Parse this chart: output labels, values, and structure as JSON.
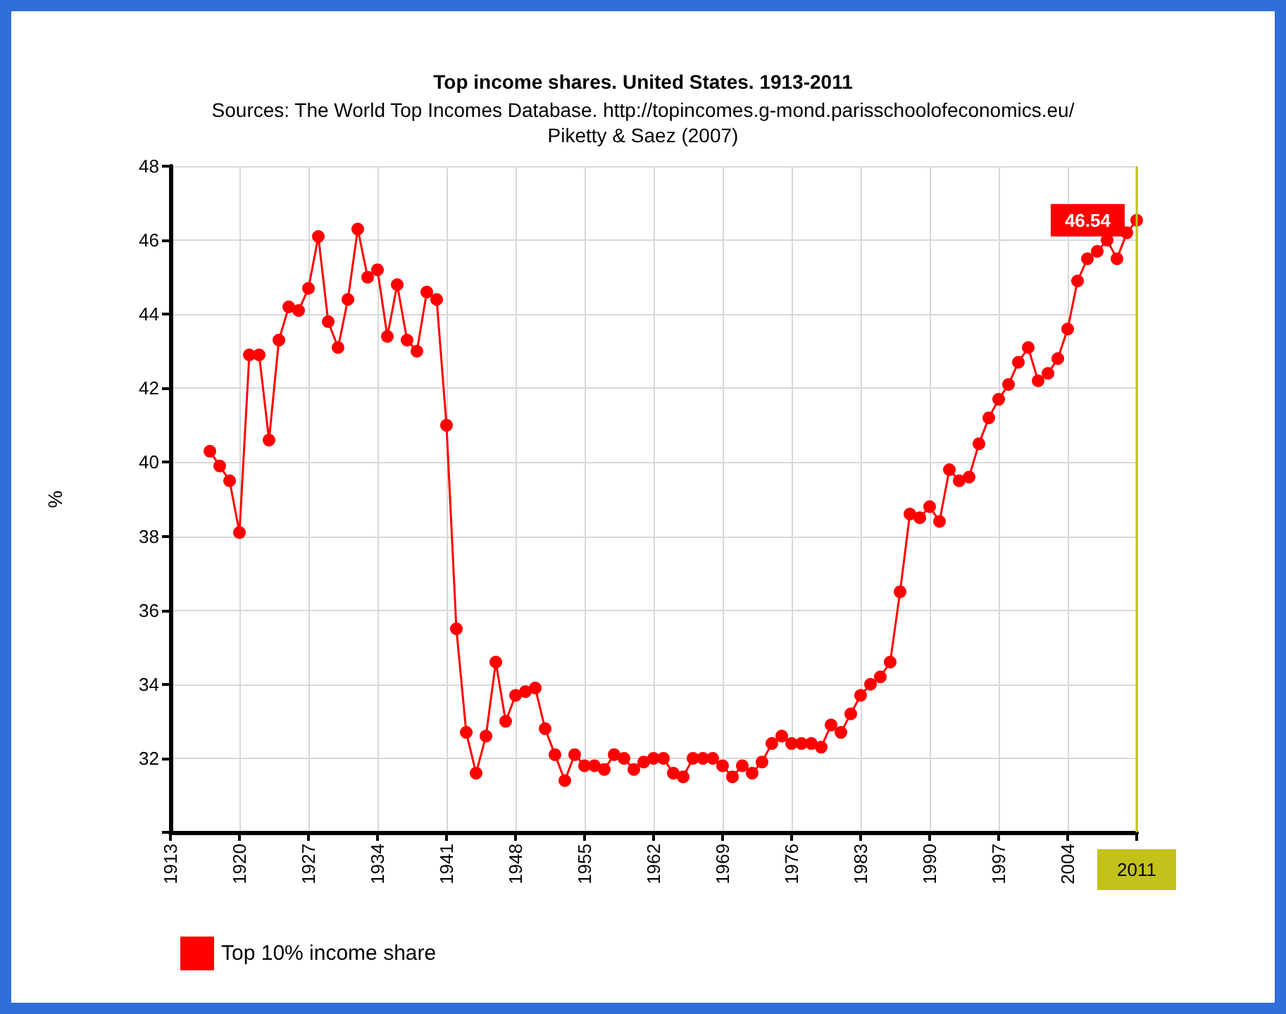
{
  "chart_data": {
    "type": "line",
    "title": "Top income shares. United States. 1913-2011",
    "subtitle": "Sources: The World Top Incomes Database. http://topincomes.g-mond.parisschoolofeconomics.eu/\nPiketty & Saez (2007)",
    "ylabel": "%",
    "x": [
      1917,
      1918,
      1919,
      1920,
      1921,
      1922,
      1923,
      1924,
      1925,
      1926,
      1927,
      1928,
      1929,
      1930,
      1931,
      1932,
      1933,
      1934,
      1935,
      1936,
      1937,
      1938,
      1939,
      1940,
      1941,
      1942,
      1943,
      1944,
      1945,
      1946,
      1947,
      1948,
      1949,
      1950,
      1951,
      1952,
      1953,
      1954,
      1955,
      1956,
      1957,
      1958,
      1959,
      1960,
      1961,
      1962,
      1963,
      1964,
      1965,
      1966,
      1967,
      1968,
      1969,
      1970,
      1971,
      1972,
      1973,
      1974,
      1975,
      1976,
      1977,
      1978,
      1979,
      1980,
      1981,
      1982,
      1983,
      1984,
      1985,
      1986,
      1987,
      1988,
      1989,
      1990,
      1991,
      1992,
      1993,
      1994,
      1995,
      1996,
      1997,
      1998,
      1999,
      2000,
      2001,
      2002,
      2003,
      2004,
      2005,
      2006,
      2007,
      2008,
      2009,
      2010,
      2011
    ],
    "series": [
      {
        "name": "Top 10% income share",
        "color": "#ff0000",
        "values": [
          40.3,
          39.9,
          39.5,
          38.1,
          42.9,
          42.9,
          40.6,
          43.3,
          44.2,
          44.1,
          44.7,
          46.1,
          43.8,
          43.1,
          44.4,
          46.3,
          45.0,
          45.2,
          43.4,
          44.8,
          43.3,
          43.0,
          44.6,
          44.4,
          41.0,
          35.5,
          32.7,
          31.6,
          32.6,
          34.6,
          33.0,
          33.7,
          33.8,
          33.9,
          32.8,
          32.1,
          31.4,
          32.1,
          31.8,
          31.8,
          31.7,
          32.1,
          32.0,
          31.7,
          31.9,
          32.0,
          32.0,
          31.6,
          31.5,
          32.0,
          32.0,
          32.0,
          31.8,
          31.5,
          31.8,
          31.6,
          31.9,
          32.4,
          32.6,
          32.4,
          32.4,
          32.4,
          32.3,
          32.9,
          32.7,
          33.2,
          33.7,
          34.0,
          34.2,
          34.6,
          36.5,
          38.6,
          38.5,
          38.8,
          38.4,
          39.8,
          39.5,
          39.6,
          40.5,
          41.2,
          41.7,
          42.1,
          42.7,
          43.1,
          42.2,
          42.4,
          42.8,
          43.6,
          44.9,
          45.5,
          45.7,
          46.0,
          45.5,
          46.2,
          46.54
        ],
        "value_labels": [
          null,
          null,
          null,
          null,
          null,
          null,
          null,
          null,
          null,
          null,
          null,
          null,
          null,
          null,
          null,
          null,
          null,
          null,
          null,
          null,
          null,
          null,
          null,
          null,
          null,
          null,
          null,
          null,
          null,
          null,
          null,
          null,
          null,
          null,
          null,
          null,
          null,
          null,
          null,
          null,
          null,
          null,
          null,
          null,
          null,
          null,
          null,
          null,
          null,
          null,
          null,
          null,
          null,
          null,
          null,
          null,
          null,
          null,
          null,
          null,
          null,
          null,
          null,
          null,
          null,
          null,
          null,
          null,
          null,
          null,
          null,
          null,
          null,
          null,
          null,
          null,
          null,
          null,
          null,
          null,
          null,
          null,
          null,
          null,
          null,
          null,
          null,
          null,
          null,
          null,
          null,
          null,
          null,
          null,
          "46.54"
        ]
      }
    ],
    "xlim": [
      1913,
      2011
    ],
    "xticks": [
      1913,
      1920,
      1927,
      1934,
      1941,
      1948,
      1955,
      1962,
      1969,
      1976,
      1983,
      1990,
      1997,
      2004,
      {
        "value": 2011,
        "label": null
      }
    ],
    "ylim": [
      30,
      48
    ],
    "yticks": [
      {
        "value": 30,
        "label": null
      },
      32,
      34,
      36,
      38,
      40,
      42,
      44,
      46,
      48
    ],
    "ref_lines": [
      {
        "axis": "x",
        "value": 2011,
        "label": "2011",
        "color": "#c2c21a"
      }
    ],
    "grid": true,
    "legend": "bottom left",
    "marker": "circle",
    "line_style": "solid"
  }
}
